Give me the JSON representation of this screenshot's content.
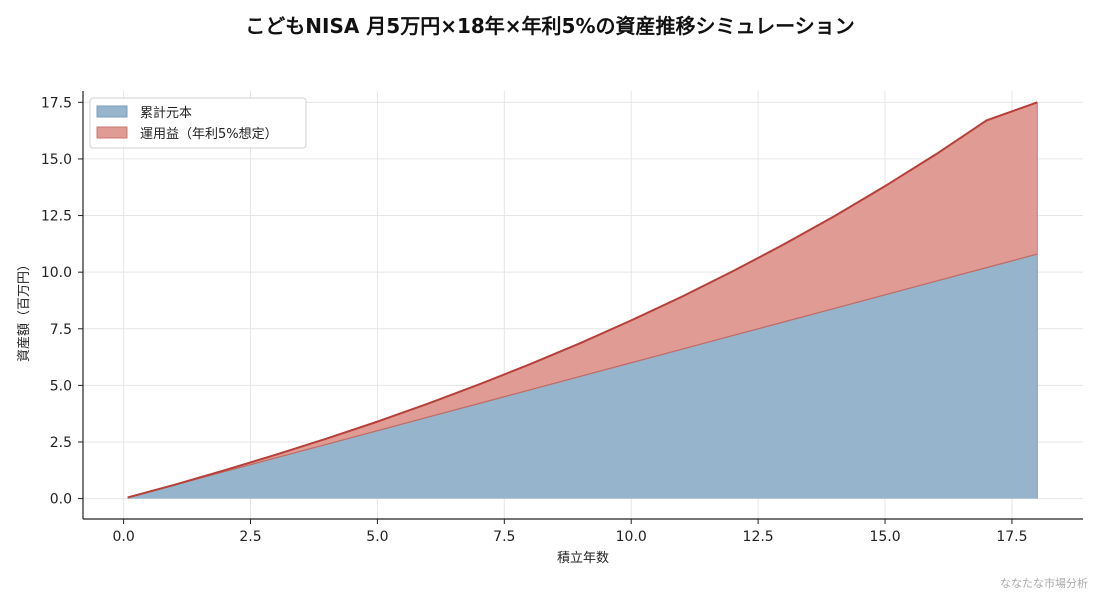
{
  "chart_data": {
    "type": "area",
    "title": "こどもNISA 月5万円×18年×年利5%の資産推移シミュレーション",
    "xlabel": "積立年数",
    "ylabel": "資産額（百万円）",
    "xlim": [
      -0.8,
      18.9
    ],
    "ylim": [
      -0.9,
      18.0
    ],
    "xticks": [
      0.0,
      2.5,
      5.0,
      7.5,
      10.0,
      12.5,
      15.0,
      17.5
    ],
    "xtick_labels": [
      "0.0",
      "2.5",
      "5.0",
      "7.5",
      "10.0",
      "12.5",
      "15.0",
      "17.5"
    ],
    "yticks": [
      0.0,
      2.5,
      5.0,
      7.5,
      10.0,
      12.5,
      15.0,
      17.5
    ],
    "ytick_labels": [
      "0.0",
      "2.5",
      "5.0",
      "7.5",
      "10.0",
      "12.5",
      "15.0",
      "17.5"
    ],
    "grid": true,
    "legend_position": "top-left",
    "stacked": true,
    "x": [
      0.08,
      1,
      2,
      3,
      4,
      5,
      6,
      7,
      8,
      9,
      10,
      11,
      12,
      13,
      14,
      15,
      16,
      17,
      18
    ],
    "series": [
      {
        "name": "累計元本",
        "color": "#96b4cc",
        "edge_color": "#7f9cb8",
        "values": [
          0.05,
          0.6,
          1.2,
          1.8,
          2.4,
          3.0,
          3.6,
          4.2,
          4.8,
          5.4,
          6.0,
          6.6,
          7.2,
          7.8,
          8.4,
          9.0,
          9.6,
          10.2,
          10.8
        ]
      },
      {
        "name": "運用益（年利5%想定）",
        "color": "#e09b94",
        "edge_color": "#b5403a",
        "values": [
          0.0,
          0.01,
          0.06,
          0.14,
          0.25,
          0.4,
          0.6,
          0.84,
          1.13,
          1.47,
          1.87,
          2.32,
          2.84,
          3.42,
          4.07,
          4.8,
          5.6,
          6.5,
          6.7
        ]
      }
    ],
    "totals": [
      0.05,
      0.61,
      1.26,
      1.94,
      2.65,
      3.4,
      4.2,
      5.04,
      5.93,
      6.87,
      7.87,
      8.92,
      10.04,
      11.22,
      12.47,
      13.8,
      15.2,
      16.7,
      17.5
    ]
  },
  "watermark": "ななたな市場分析"
}
